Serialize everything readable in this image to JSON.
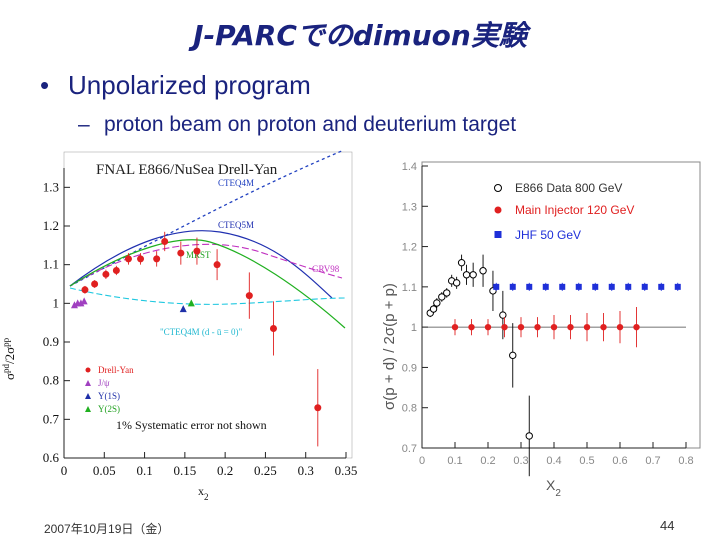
{
  "slide": {
    "title": "J-PARCでのdimuon実験",
    "bullet": "Unpolarized program",
    "sub_bullet": "proton beam on proton and deuterium target",
    "date": "2007年10月19日（金）",
    "page_number": "44"
  },
  "chart_data": [
    {
      "type": "scatter",
      "title": "FNAL E866/NuSea Drell-Yan",
      "xlabel": "x2",
      "ylabel": "σpd/2σpp",
      "xlim": [
        0,
        0.35
      ],
      "ylim": [
        0.6,
        1.35
      ],
      "x_ticks": [
        "0",
        "0.05",
        "0.1",
        "0.15",
        "0.2",
        "0.25",
        "0.3",
        "0.35"
      ],
      "y_ticks": [
        "0.6",
        "0.7",
        "0.8",
        "0.9",
        "1",
        "1.1",
        "1.2",
        "1.3"
      ],
      "curve_labels": [
        "CTEQ4M",
        "CTEQ5M",
        "MRST",
        "GRV98",
        "\"CTEQ4M (d - ū = 0)\""
      ],
      "note": "1% Systematic error not shown",
      "series": [
        {
          "name": "Drell-Yan",
          "color": "#e02020",
          "marker": "circle",
          "points": [
            [
              0.026,
              1.035,
              0.01
            ],
            [
              0.038,
              1.05,
              0.01
            ],
            [
              0.052,
              1.075,
              0.012
            ],
            [
              0.065,
              1.085,
              0.012
            ],
            [
              0.08,
              1.115,
              0.015
            ],
            [
              0.095,
              1.115,
              0.015
            ],
            [
              0.115,
              1.115,
              0.02
            ],
            [
              0.125,
              1.16,
              0.025
            ],
            [
              0.145,
              1.13,
              0.03
            ],
            [
              0.165,
              1.135,
              0.035
            ],
            [
              0.19,
              1.1,
              0.04
            ],
            [
              0.23,
              1.02,
              0.06
            ],
            [
              0.26,
              0.935,
              0.07
            ],
            [
              0.315,
              0.73,
              0.1
            ]
          ]
        },
        {
          "name": "J/ψ",
          "color": "#a040c0",
          "marker": "triangle",
          "points": [
            [
              0.013,
              0.995
            ],
            [
              0.017,
              1.0
            ],
            [
              0.021,
              1.0
            ],
            [
              0.025,
              1.005
            ]
          ]
        },
        {
          "name": "Υ(1S)",
          "color": "#1e2fa8",
          "marker": "triangle",
          "points": [
            [
              0.148,
              0.985
            ]
          ]
        },
        {
          "name": "Υ(2S)",
          "color": "#20b020",
          "marker": "triangle",
          "points": [
            [
              0.158,
              1.0
            ]
          ]
        }
      ]
    },
    {
      "type": "scatter",
      "xlabel": "X2",
      "ylabel": "σ(p + d) / 2σ(p + p)",
      "xlim": [
        0,
        0.8
      ],
      "ylim": [
        0.7,
        1.4
      ],
      "x_ticks": [
        "0",
        "0.1",
        "0.2",
        "0.3",
        "0.4",
        "0.5",
        "0.6",
        "0.7",
        "0.8"
      ],
      "y_ticks": [
        "0.7",
        "0.8",
        "0.9",
        "1",
        "1.1",
        "1.2",
        "1.3",
        "1.4"
      ],
      "series": [
        {
          "name": "E866 Data 800 GeV",
          "color": "#000000",
          "marker": "open-circle",
          "points": [
            [
              0.025,
              1.035,
              0.01
            ],
            [
              0.035,
              1.045,
              0.01
            ],
            [
              0.045,
              1.06,
              0.012
            ],
            [
              0.06,
              1.075,
              0.012
            ],
            [
              0.075,
              1.085,
              0.012
            ],
            [
              0.09,
              1.115,
              0.015
            ],
            [
              0.105,
              1.11,
              0.015
            ],
            [
              0.12,
              1.16,
              0.02
            ],
            [
              0.135,
              1.13,
              0.025
            ],
            [
              0.155,
              1.13,
              0.03
            ],
            [
              0.185,
              1.14,
              0.04
            ],
            [
              0.215,
              1.09,
              0.05
            ],
            [
              0.245,
              1.03,
              0.06
            ],
            [
              0.275,
              0.93,
              0.08
            ],
            [
              0.325,
              0.73,
              0.1
            ]
          ]
        },
        {
          "name": "Main Injector 120 GeV",
          "color": "#e02020",
          "marker": "circle",
          "points": [
            [
              0.1,
              1.0,
              0.02
            ],
            [
              0.15,
              1.0,
              0.02
            ],
            [
              0.2,
              1.0,
              0.02
            ],
            [
              0.25,
              1.0,
              0.025
            ],
            [
              0.3,
              1.0,
              0.025
            ],
            [
              0.35,
              1.0,
              0.025
            ],
            [
              0.4,
              1.0,
              0.03
            ],
            [
              0.45,
              1.0,
              0.03
            ],
            [
              0.5,
              1.0,
              0.035
            ],
            [
              0.55,
              1.0,
              0.035
            ],
            [
              0.6,
              1.0,
              0.04
            ],
            [
              0.65,
              1.0,
              0.05
            ]
          ]
        },
        {
          "name": "JHF 50 GeV",
          "color": "#1e2fd8",
          "marker": "square",
          "points": [
            [
              0.225,
              1.1,
              0.01
            ],
            [
              0.275,
              1.1,
              0.01
            ],
            [
              0.325,
              1.1,
              0.01
            ],
            [
              0.375,
              1.1,
              0.01
            ],
            [
              0.425,
              1.1,
              0.01
            ],
            [
              0.475,
              1.1,
              0.01
            ],
            [
              0.525,
              1.1,
              0.01
            ],
            [
              0.575,
              1.1,
              0.01
            ],
            [
              0.625,
              1.1,
              0.01
            ],
            [
              0.675,
              1.1,
              0.01
            ],
            [
              0.725,
              1.1,
              0.01
            ],
            [
              0.775,
              1.1,
              0.01
            ]
          ]
        }
      ]
    }
  ]
}
